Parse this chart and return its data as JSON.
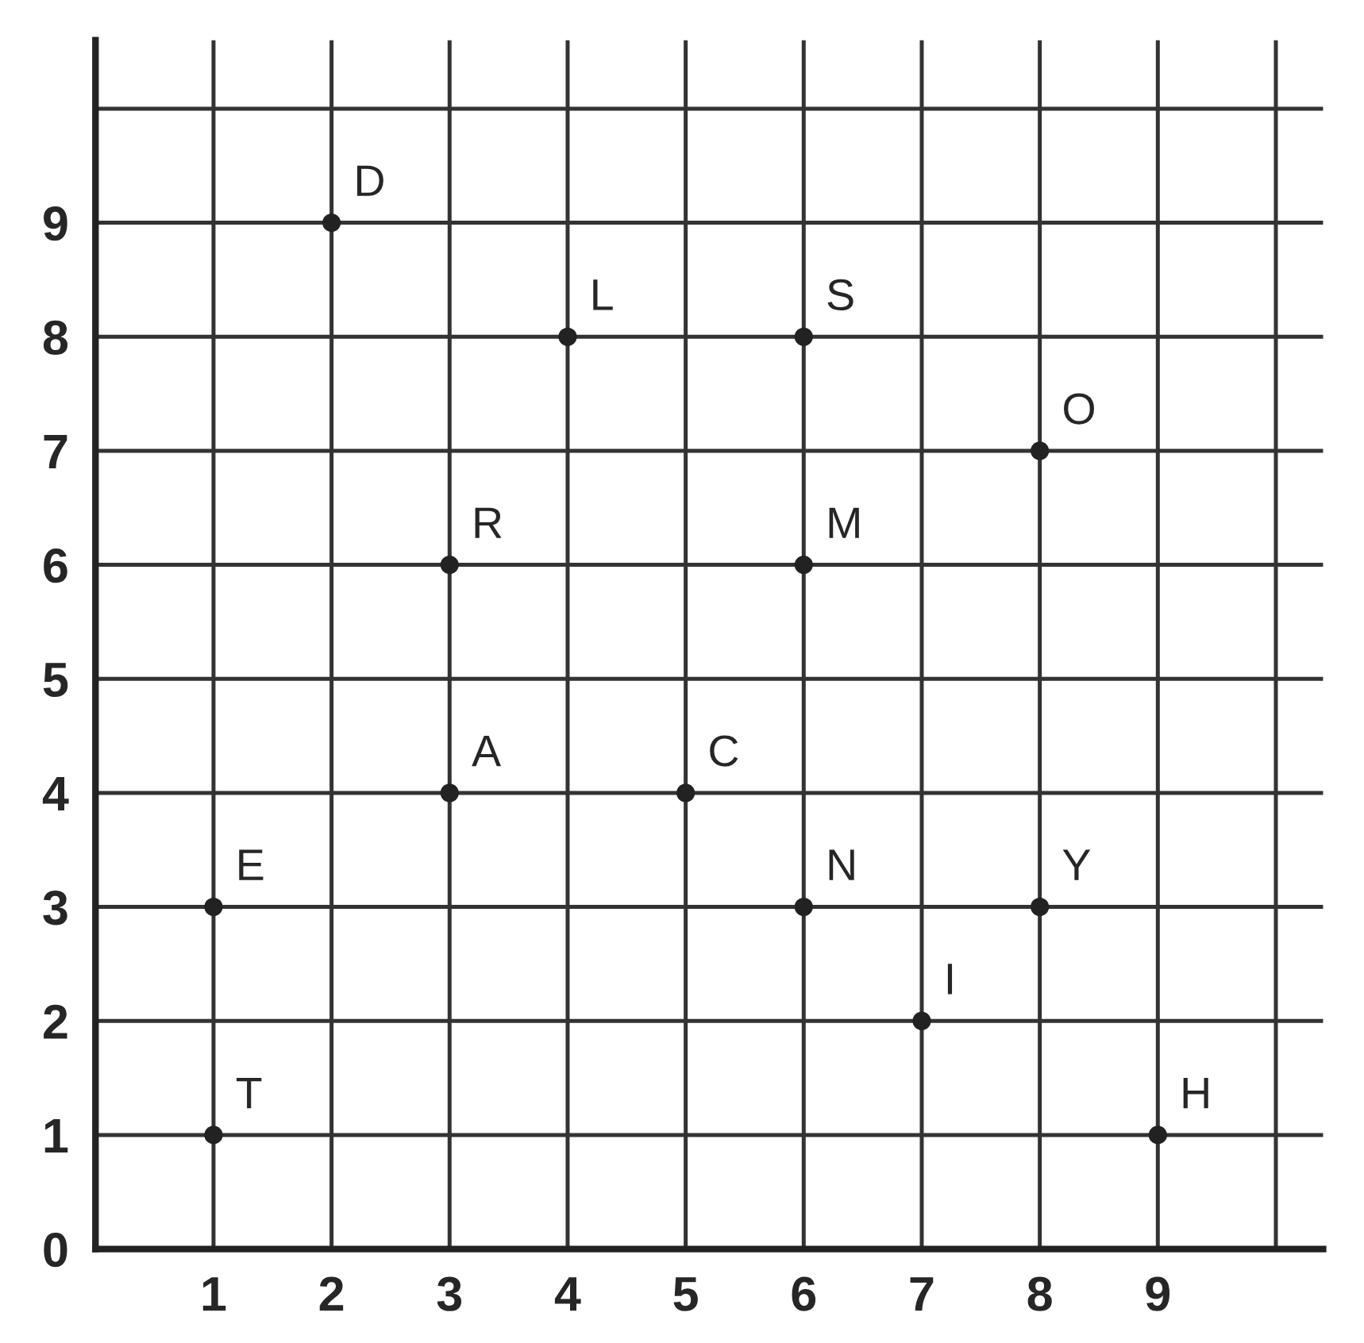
{
  "chart_data": {
    "type": "scatter",
    "x": [
      2,
      4,
      6,
      8,
      3,
      6,
      3,
      5,
      1,
      6,
      8,
      7,
      1,
      9
    ],
    "series": [
      {
        "color": "#222222",
        "values": [
          9,
          8,
          8,
          7,
          6,
          6,
          4,
          4,
          3,
          3,
          3,
          2,
          1,
          1
        ]
      }
    ],
    "annotations": [
      {
        "text": "D",
        "x": 2,
        "y": 9
      },
      {
        "text": "L",
        "x": 4,
        "y": 8
      },
      {
        "text": "S",
        "x": 6,
        "y": 8
      },
      {
        "text": "O",
        "x": 8,
        "y": 7
      },
      {
        "text": "R",
        "x": 3,
        "y": 6
      },
      {
        "text": "M",
        "x": 6,
        "y": 6
      },
      {
        "text": "A",
        "x": 3,
        "y": 4
      },
      {
        "text": "C",
        "x": 5,
        "y": 4
      },
      {
        "text": "E",
        "x": 1,
        "y": 3
      },
      {
        "text": "N",
        "x": 6,
        "y": 3
      },
      {
        "text": "Y",
        "x": 8,
        "y": 3
      },
      {
        "text": "I",
        "x": 7,
        "y": 2
      },
      {
        "text": "T",
        "x": 1,
        "y": 1
      },
      {
        "text": "H",
        "x": 9,
        "y": 1
      }
    ],
    "xlim": [
      0,
      10.4
    ],
    "ylim": [
      0,
      10.6
    ],
    "xticks": [
      1,
      2,
      3,
      4,
      5,
      6,
      7,
      8,
      9,
      {
        "value": 10,
        "label": null
      }
    ],
    "yticks": [
      0,
      1,
      2,
      3,
      4,
      5,
      6,
      7,
      8,
      9,
      {
        "value": 10,
        "label": null
      }
    ],
    "grid": true,
    "marker": "circle"
  }
}
